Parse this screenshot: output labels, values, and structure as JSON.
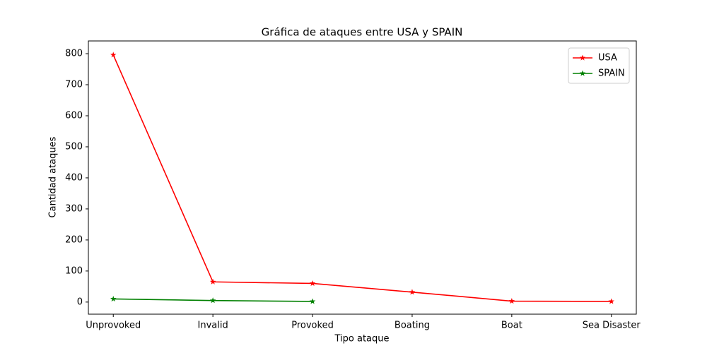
{
  "chart_data": {
    "type": "line",
    "title": "Gráfica de ataques entre USA y SPAIN",
    "x_label": "Tipo ataque",
    "y_label": "Cantidad ataques",
    "categories": [
      "Unprovoked",
      "Invalid",
      "Provoked",
      "Boating",
      "Boat",
      "Sea Disaster"
    ],
    "series": [
      {
        "name": "USA",
        "color": "#ff0000",
        "values": [
          796,
          65,
          60,
          32,
          3,
          2
        ]
      },
      {
        "name": "SPAIN",
        "color": "#008000",
        "values": [
          10,
          5,
          2,
          null,
          null,
          null
        ]
      }
    ],
    "ylim": [
      -39,
      841
    ],
    "yticks": [
      0,
      100,
      200,
      300,
      400,
      500,
      600,
      700,
      800
    ],
    "legend": "upper right",
    "marker": "star"
  }
}
